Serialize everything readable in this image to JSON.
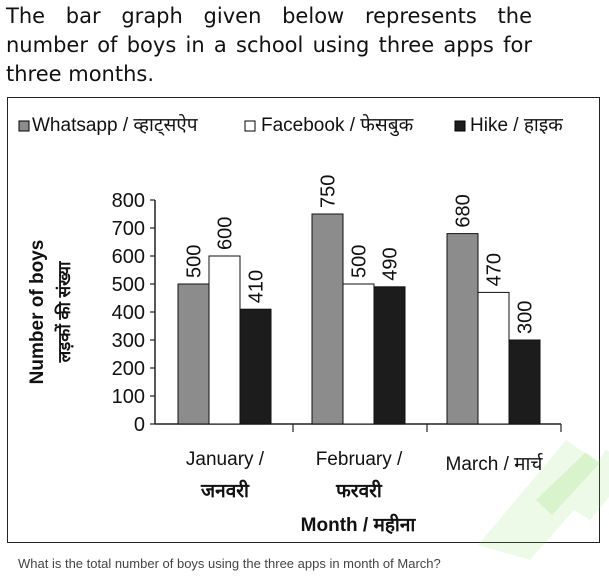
{
  "intro_text": "The bar graph given below represents the number of boys in a school using three apps for three months.",
  "question_text": "What is the total number of boys using the three apps in month of March?",
  "chart_data": {
    "type": "bar",
    "categories": [
      "January / जनवरी",
      "February / फरवरी",
      "March / मार्च"
    ],
    "category_lines": [
      [
        "January /",
        "जनवरी"
      ],
      [
        "February /",
        "फरवरी"
      ],
      [
        "March / मार्च"
      ]
    ],
    "series": [
      {
        "name": "Whatsapp / व्हाट्सऐप",
        "values": [
          500,
          750,
          680
        ],
        "color": "#8c8c8c"
      },
      {
        "name": "Facebook / फेसबुक",
        "values": [
          600,
          500,
          470
        ],
        "color": "#ffffff"
      },
      {
        "name": "Hike / हाइक",
        "values": [
          410,
          490,
          300
        ],
        "color": "#1c1c1c"
      }
    ],
    "ylabel": "Number of boys",
    "ylabel_hindi": "लड़कों की संख्या",
    "xlabel": "Month / महीना",
    "ylim": [
      0,
      800
    ],
    "yticks": [
      0,
      100,
      200,
      300,
      400,
      500,
      600,
      700,
      800
    ],
    "legend_position": "top",
    "grid": false
  }
}
